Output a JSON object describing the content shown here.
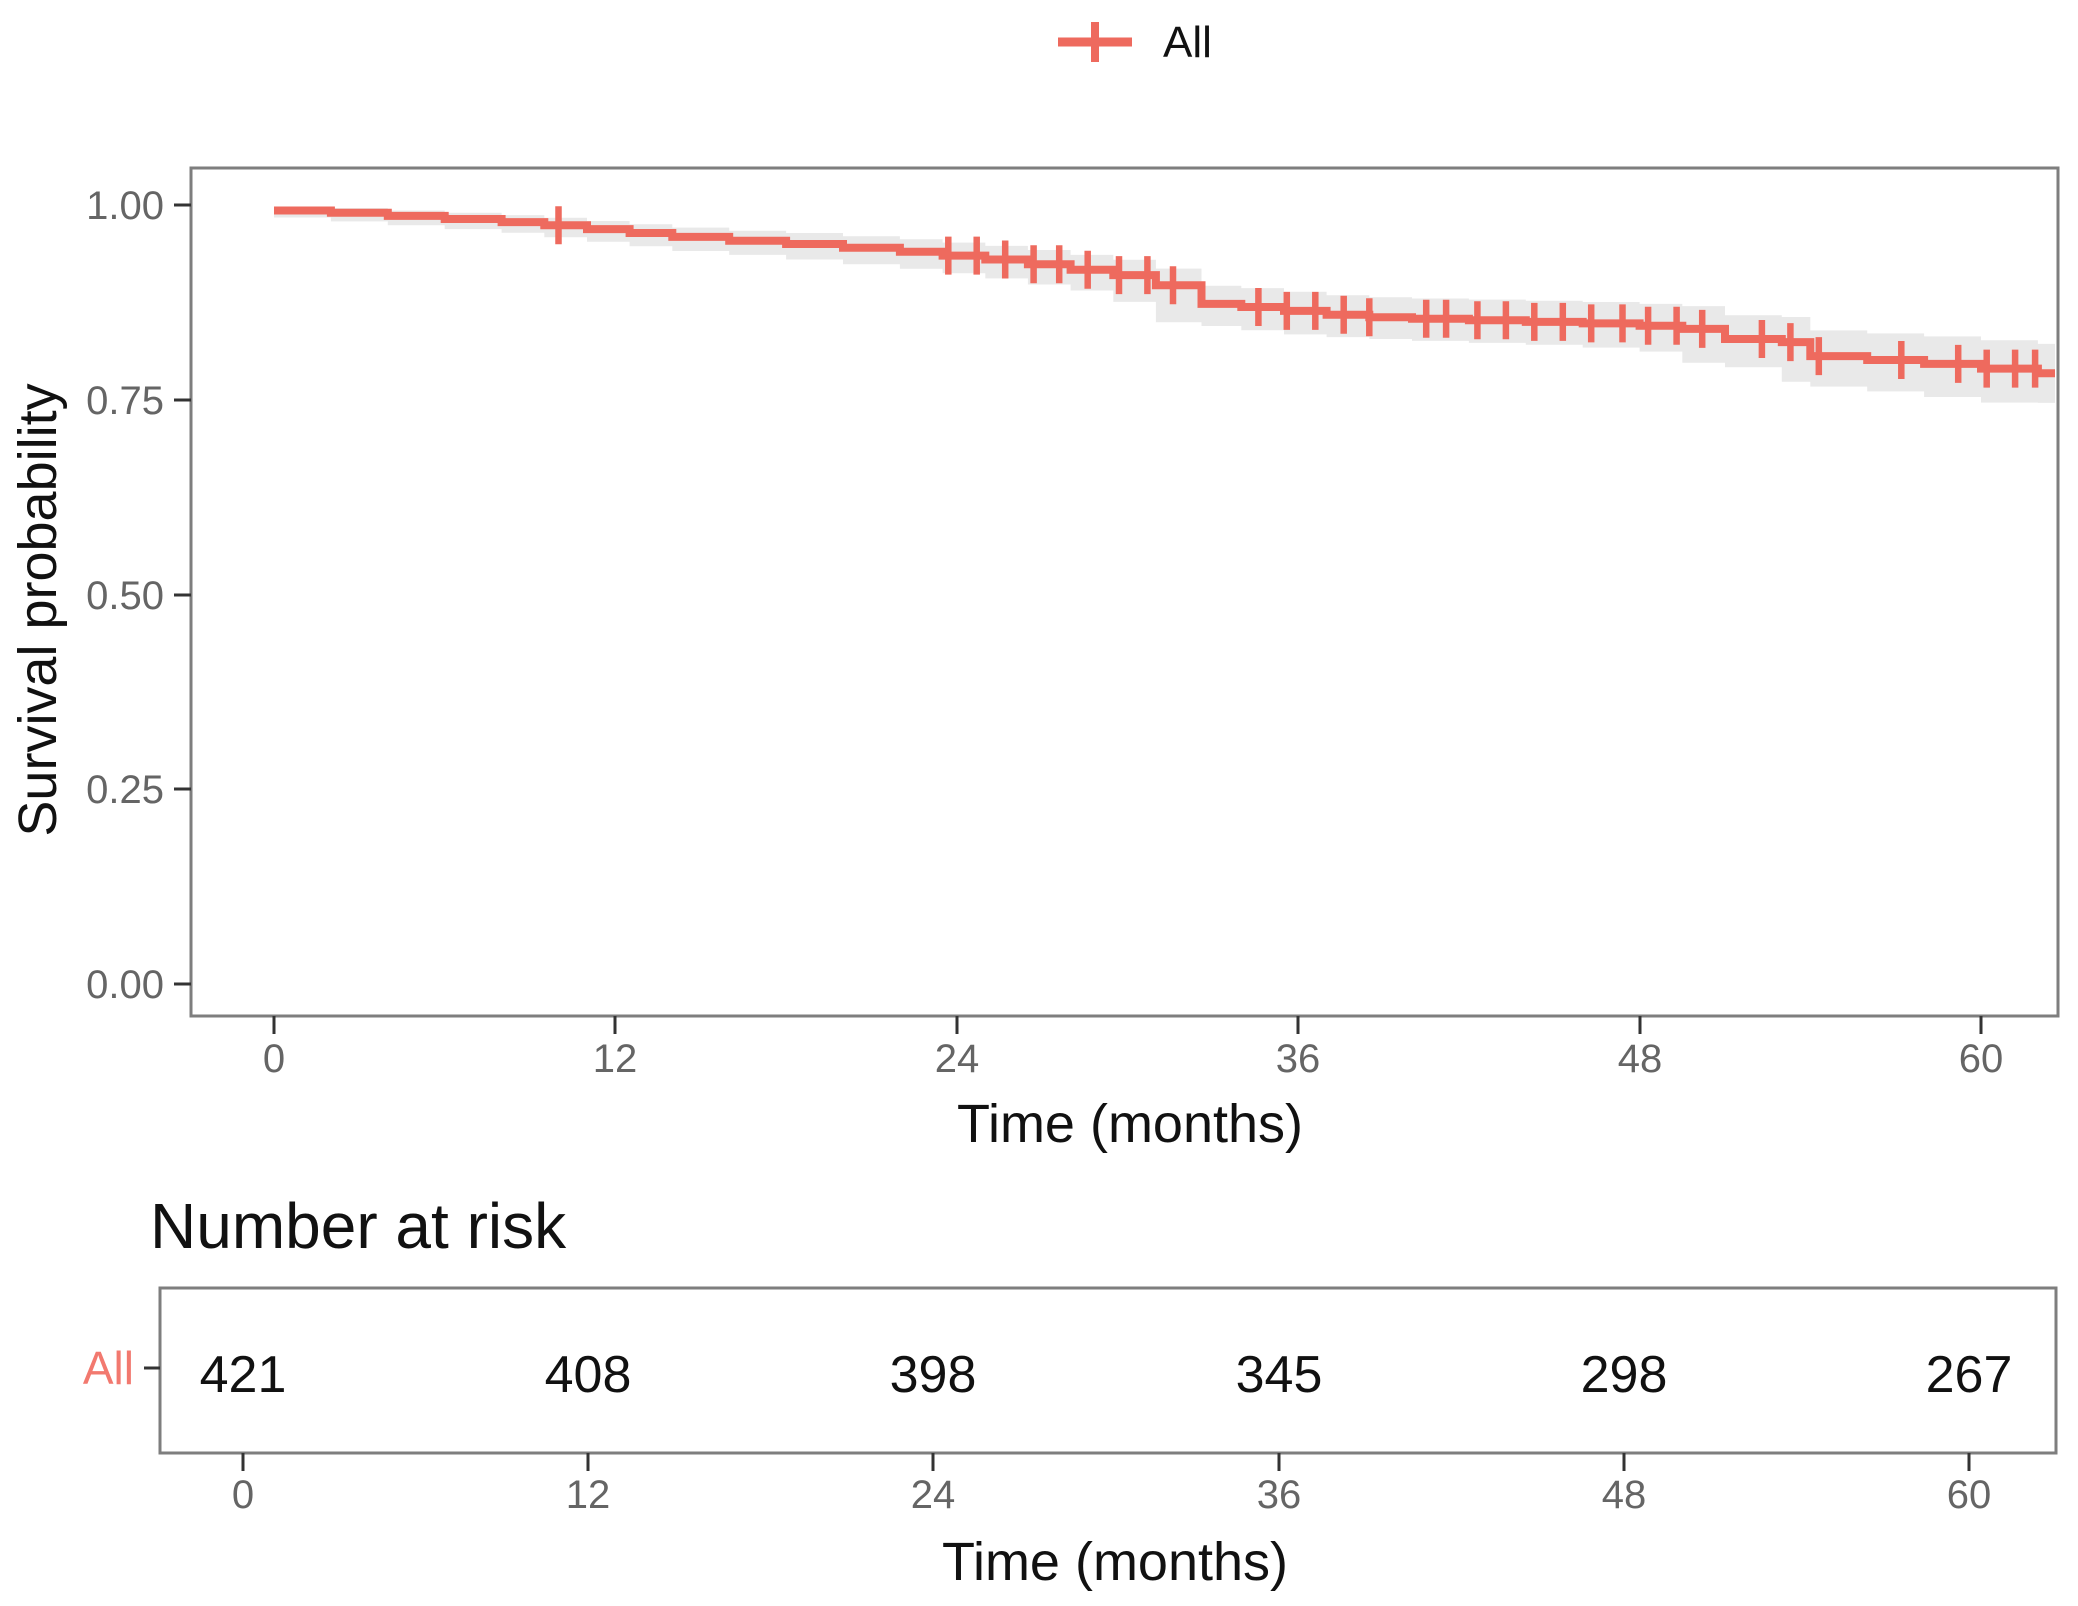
{
  "colors": {
    "curve": "#ee6a5e",
    "accent_label": "#f2796f",
    "ci_band": "rgba(127,127,127,0.17)",
    "tick_label": "#656565",
    "axis_line": "#7e7e7e",
    "text": "#111111"
  },
  "legend": {
    "label": "All"
  },
  "main_plot": {
    "ylabel": "Survival probability",
    "xlabel": "Time (months)",
    "y_ticks": [
      "1.00",
      "0.75",
      "0.50",
      "0.25",
      "0.00"
    ],
    "x_ticks": [
      "0",
      "12",
      "24",
      "36",
      "48",
      "60"
    ]
  },
  "risk_table": {
    "title": "Number at risk",
    "row_label": "All",
    "values": [
      "421",
      "408",
      "398",
      "345",
      "298",
      "267"
    ],
    "x_ticks": [
      "0",
      "12",
      "24",
      "36",
      "48",
      "60"
    ],
    "xlabel": "Time (months)"
  },
  "chart_data": {
    "type": "line",
    "variant": "kaplan-meier-step",
    "title": "",
    "xlabel": "Time (months)",
    "ylabel": "Survival probability",
    "xlim": [
      -3,
      62.7
    ],
    "ylim": [
      0,
      1.0
    ],
    "x_tick_values": [
      0,
      12,
      24,
      36,
      48,
      60
    ],
    "y_tick_values": [
      1.0,
      0.75,
      0.5,
      0.25,
      0.0
    ],
    "grid": false,
    "legend_position": "top",
    "extend_to": 62.6,
    "series": [
      {
        "name": "All",
        "color": "#ee6a5e",
        "steps": [
          [
            0,
            0.993
          ],
          [
            2,
            0.99
          ],
          [
            4,
            0.986
          ],
          [
            6,
            0.982
          ],
          [
            8,
            0.978
          ],
          [
            9.5,
            0.974
          ],
          [
            11,
            0.969
          ],
          [
            12.5,
            0.964
          ],
          [
            14,
            0.959
          ],
          [
            16,
            0.954
          ],
          [
            18,
            0.95
          ],
          [
            20,
            0.945
          ],
          [
            22,
            0.94
          ],
          [
            23.5,
            0.935
          ],
          [
            25,
            0.93
          ],
          [
            26.5,
            0.924
          ],
          [
            28,
            0.917
          ],
          [
            29.5,
            0.91
          ],
          [
            31,
            0.897
          ],
          [
            32.6,
            0.873
          ],
          [
            34,
            0.869
          ],
          [
            35.5,
            0.864
          ],
          [
            37,
            0.859
          ],
          [
            38.5,
            0.856
          ],
          [
            40,
            0.854
          ],
          [
            42,
            0.852
          ],
          [
            44,
            0.85
          ],
          [
            46,
            0.848
          ],
          [
            48,
            0.845
          ],
          [
            49.5,
            0.841
          ],
          [
            51,
            0.828
          ],
          [
            53,
            0.824
          ],
          [
            54,
            0.806
          ],
          [
            56,
            0.801
          ],
          [
            58,
            0.796
          ],
          [
            60,
            0.79
          ],
          [
            62,
            0.784
          ]
        ],
        "censor_times": [
          10,
          23.7,
          24.7,
          25.7,
          26.7,
          27.6,
          28.6,
          29.7,
          30.7,
          31.6,
          34.6,
          35.6,
          36.6,
          37.6,
          38.5,
          40.5,
          41.2,
          42.3,
          43.3,
          44.3,
          45.3,
          46.3,
          47.4,
          48.3,
          49.3,
          50.2,
          52.3,
          53.3,
          54.3,
          57.2,
          59.2,
          60.2,
          61.2,
          61.9
        ],
        "ci_halfwidth": [
          [
            0,
            0.005
          ],
          [
            10,
            0.01
          ],
          [
            20,
            0.015
          ],
          [
            30,
            0.02
          ],
          [
            33,
            0.024
          ],
          [
            40,
            0.026
          ],
          [
            48,
            0.028
          ],
          [
            54,
            0.033
          ],
          [
            62.6,
            0.038
          ]
        ]
      }
    ],
    "number_at_risk": {
      "group": "All",
      "times": [
        0,
        12,
        24,
        36,
        48,
        60
      ],
      "counts": [
        421,
        408,
        398,
        345,
        298,
        267
      ]
    }
  }
}
